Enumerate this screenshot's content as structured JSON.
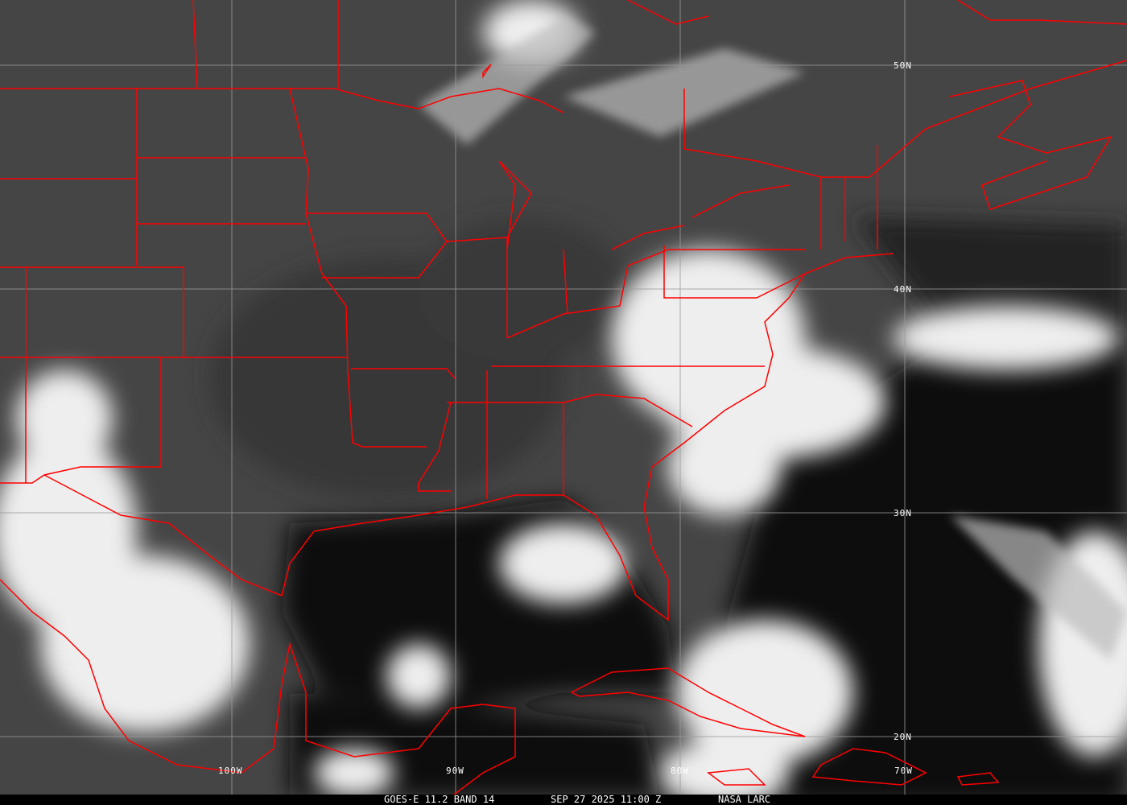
{
  "image": {
    "satellite": "GOES-E",
    "caption": {
      "product": "GOES-E 11.2 BAND 14",
      "datetime": "SEP 27 2025 11:00 Z",
      "source": "NASA LARC"
    },
    "latitude_labels": [
      "50N",
      "40N",
      "30N",
      "20N"
    ],
    "longitude_labels": [
      "100W",
      "90W",
      "80W",
      "70W"
    ],
    "colors": {
      "boundaries": "#ff0000",
      "grid": "#9a9a9a",
      "land_ir": "#3c3c3c",
      "ocean_ir": "#0a0a0a",
      "clouds": "#f2f2f2"
    }
  }
}
